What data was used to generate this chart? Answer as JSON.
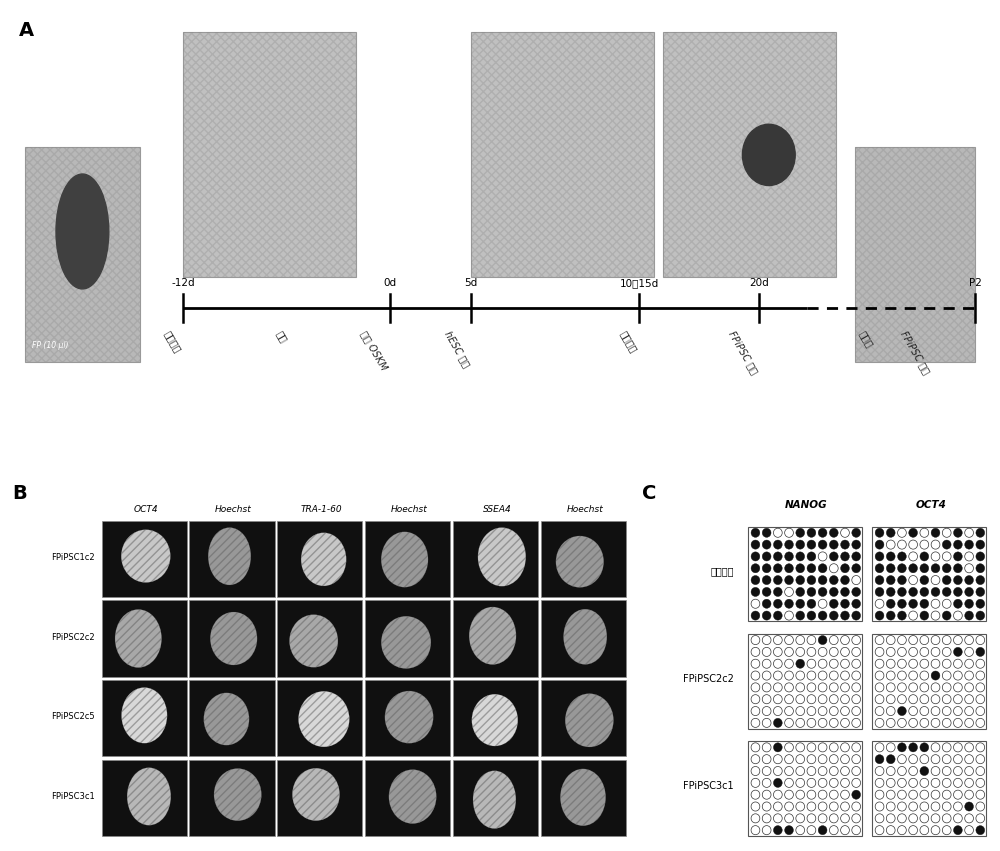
{
  "panel_A_label": "A",
  "panel_B_label": "B",
  "panel_C_label": "C",
  "timeline_labels": [
    "-12d",
    "0d",
    "5d",
    "10至15d",
    "20d",
    "P2"
  ],
  "below_labels": [
    "手指刺破",
    "扩增",
    "仙台 OSKM",
    "hESC 介质",
    "上皮克隆",
    "FPiPSC 克隆",
    "建立的",
    "FPiPSC 克隆"
  ],
  "row_labels_B": [
    "FPiPSC1c2",
    "FPiPSC2c2",
    "FPiPSC2c5",
    "FPiPSC3c1"
  ],
  "col_labels_B": [
    "OCT4",
    "Hoechst",
    "TRA-1-60",
    "Hoechst",
    "SSEA4",
    "Hoechst"
  ],
  "row_labels_C": [
    "亲本细胞",
    "FPiPSC2c2",
    "FPiPSC3c1"
  ],
  "col_labels_C": [
    "NANOG",
    "OCT4"
  ],
  "bg_color": "#ffffff",
  "fp_label": "FP (10 μl)"
}
